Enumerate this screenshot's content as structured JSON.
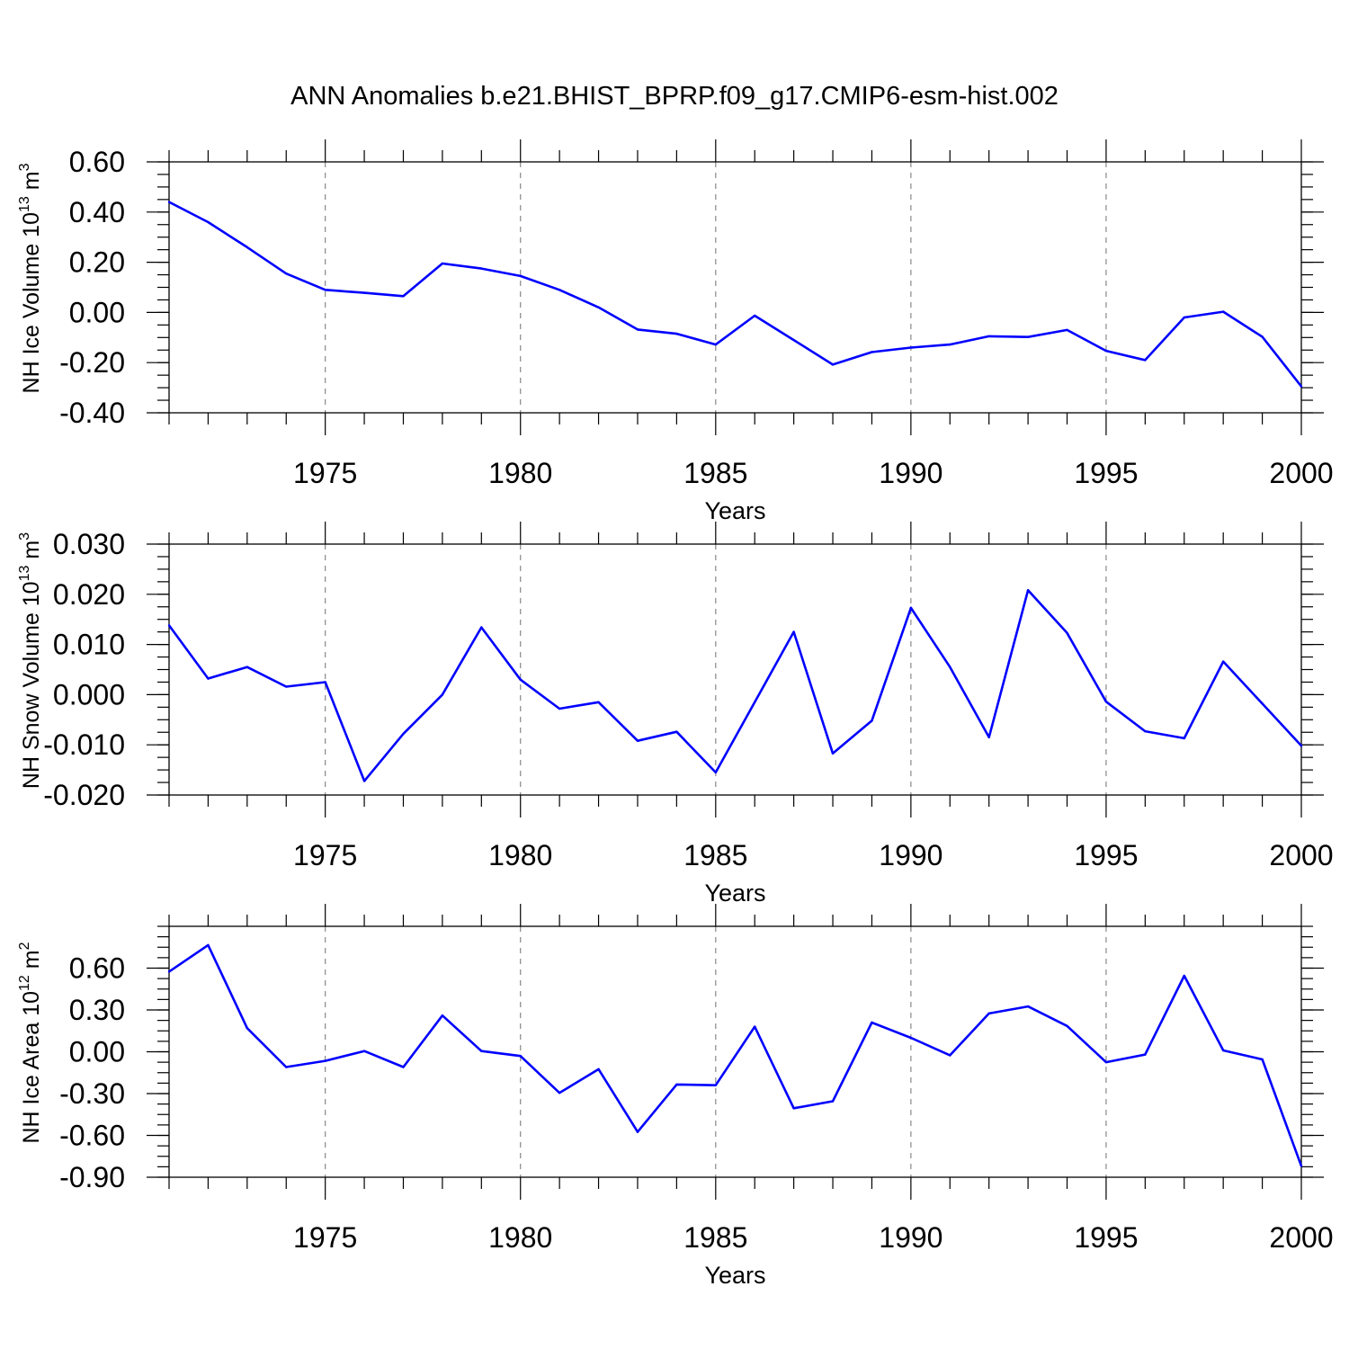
{
  "title": "ANN Anomalies b.e21.BHIST_BPRP.f09_g17.CMIP6-esm-hist.002",
  "chart_data": [
    {
      "type": "line",
      "title": "ANN Anomalies b.e21.BHIST_BPRP.f09_g17.CMIP6-esm-hist.002",
      "xlabel": "Years",
      "ylabel": "NH Ice Volume",
      "ylabel_unit_base": "10",
      "ylabel_unit_exp": "13",
      "ylabel_unit_symbol": "m",
      "ylabel_unit_power": "3",
      "xlim": [
        1971,
        2000
      ],
      "ylim": [
        -0.4,
        0.6
      ],
      "x_ticks": [
        "1975",
        "1980",
        "1985",
        "1990",
        "1995",
        "2000"
      ],
      "y_ticks": [
        "0.60",
        "0.40",
        "0.20",
        "0.00",
        "-0.20",
        "-0.40"
      ],
      "y_tick_values": [
        0.6,
        0.4,
        0.2,
        0.0,
        -0.2,
        -0.4
      ],
      "grid": "vertical dashed at labeled years",
      "color": "#0000ff",
      "x": [
        1971,
        1972,
        1973,
        1974,
        1975,
        1976,
        1977,
        1978,
        1979,
        1980,
        1981,
        1982,
        1983,
        1984,
        1985,
        1986,
        1987,
        1988,
        1989,
        1990,
        1991,
        1992,
        1993,
        1994,
        1995,
        1996,
        1997,
        1998,
        1999,
        2000
      ],
      "values": [
        0.44,
        0.36,
        0.26,
        0.155,
        0.09,
        0.078,
        0.065,
        0.195,
        0.175,
        0.145,
        0.09,
        0.02,
        -0.068,
        -0.085,
        -0.128,
        -0.013,
        -0.11,
        -0.208,
        -0.158,
        -0.14,
        -0.128,
        -0.095,
        -0.098,
        -0.07,
        -0.153,
        -0.19,
        -0.02,
        0.003,
        -0.097,
        -0.295
      ]
    },
    {
      "type": "line",
      "xlabel": "Years",
      "ylabel": "NH Snow Volume",
      "ylabel_unit_base": "10",
      "ylabel_unit_exp": "13",
      "ylabel_unit_symbol": "m",
      "ylabel_unit_power": "3",
      "xlim": [
        1971,
        2000
      ],
      "ylim": [
        -0.02,
        0.03
      ],
      "x_ticks": [
        "1975",
        "1980",
        "1985",
        "1990",
        "1995",
        "2000"
      ],
      "y_ticks": [
        "0.030",
        "0.020",
        "0.010",
        "0.000",
        "-0.010",
        "-0.020"
      ],
      "y_tick_values": [
        0.03,
        0.02,
        0.01,
        0.0,
        -0.01,
        -0.02
      ],
      "grid": "vertical dashed at labeled years",
      "color": "#0000ff",
      "x": [
        1971,
        1972,
        1973,
        1974,
        1975,
        1976,
        1977,
        1978,
        1979,
        1980,
        1981,
        1982,
        1983,
        1984,
        1985,
        1986,
        1987,
        1988,
        1989,
        1990,
        1991,
        1992,
        1993,
        1994,
        1995,
        1996,
        1997,
        1998,
        1999,
        2000
      ],
      "values": [
        0.0138,
        0.0032,
        0.0055,
        0.0016,
        0.0025,
        -0.0172,
        -0.0078,
        0.0,
        0.0134,
        0.003,
        -0.0028,
        -0.0015,
        -0.0092,
        -0.0074,
        -0.0155,
        -0.0015,
        0.0125,
        -0.0117,
        -0.0052,
        0.0173,
        0.0055,
        -0.0085,
        0.0208,
        0.0123,
        -0.0014,
        -0.0073,
        -0.0087,
        0.0066,
        -0.0018,
        -0.0102
      ]
    },
    {
      "type": "line",
      "xlabel": "Years",
      "ylabel": "NH Ice Area",
      "ylabel_unit_base": "10",
      "ylabel_unit_exp": "12",
      "ylabel_unit_symbol": "m",
      "ylabel_unit_power": "2",
      "xlim": [
        1971,
        2000
      ],
      "ylim": [
        -0.9,
        0.9
      ],
      "x_ticks": [
        "1975",
        "1980",
        "1985",
        "1990",
        "1995",
        "2000"
      ],
      "y_ticks": [
        "0.60",
        "0.30",
        "0.00",
        "-0.30",
        "-0.60",
        "-0.90"
      ],
      "y_tick_values": [
        0.6,
        0.3,
        0.0,
        -0.3,
        -0.6,
        -0.9
      ],
      "grid": "vertical dashed at labeled years",
      "color": "#0000ff",
      "x": [
        1971,
        1972,
        1973,
        1974,
        1975,
        1976,
        1977,
        1978,
        1979,
        1980,
        1981,
        1982,
        1983,
        1984,
        1985,
        1986,
        1987,
        1988,
        1989,
        1990,
        1991,
        1992,
        1993,
        1994,
        1995,
        1996,
        1997,
        1998,
        1999,
        2000
      ],
      "values": [
        0.575,
        0.765,
        0.17,
        -0.11,
        -0.065,
        0.005,
        -0.11,
        0.26,
        0.005,
        -0.03,
        -0.295,
        -0.125,
        -0.575,
        -0.235,
        -0.24,
        0.18,
        -0.405,
        -0.355,
        0.21,
        0.1,
        -0.025,
        0.275,
        0.325,
        0.185,
        -0.075,
        -0.02,
        0.545,
        0.01,
        -0.055,
        -0.82
      ]
    }
  ]
}
